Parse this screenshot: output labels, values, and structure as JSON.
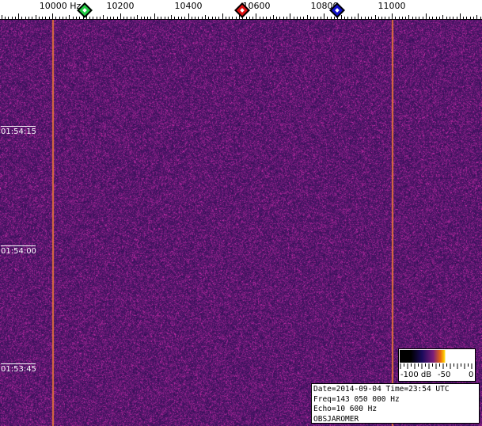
{
  "frequency_axis": {
    "labels": [
      "10000 Hz",
      "10200",
      "10400",
      "10600",
      "10800",
      "11000"
    ],
    "label_values": [
      10000,
      10200,
      10400,
      10600,
      10800,
      11000
    ]
  },
  "markers": [
    {
      "name": "green",
      "color": "#22cc44",
      "freq": 10095
    },
    {
      "name": "red",
      "color": "#dd1111",
      "freq": 10560
    },
    {
      "name": "blue",
      "color": "#1111cc",
      "freq": 10840
    }
  ],
  "time_axis": {
    "labels": [
      "01:54:15",
      "01:54:00",
      "01:53:45"
    ]
  },
  "colorbar": {
    "labels": [
      "-100 dB",
      "-50",
      "0"
    ]
  },
  "info": {
    "date_line": "Date=2014-09-04 Time=23:54 UTC",
    "freq_line": "Freq=143 050 000 Hz",
    "echo_line": "Echo=10 600 Hz",
    "station": "OBSJAROMER"
  },
  "colors": {
    "background": "#2a1566",
    "carrier_line": "#e0703a"
  }
}
